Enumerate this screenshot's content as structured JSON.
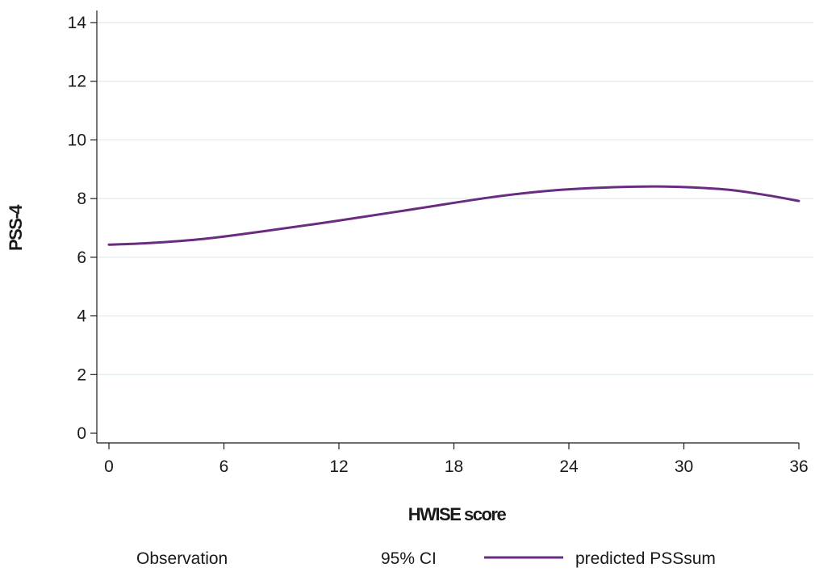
{
  "chart_data": {
    "type": "line",
    "xlabel": "HWISE score",
    "ylabel": "PSS-4",
    "xlim": [
      0,
      36
    ],
    "ylim": [
      0,
      14
    ],
    "xticks": [
      0,
      6,
      12,
      18,
      24,
      30,
      36
    ],
    "yticks": [
      0,
      2,
      4,
      6,
      8,
      10,
      12,
      14
    ],
    "grid": "horizontal",
    "legend_position": "bottom",
    "legend": [
      {
        "label": "Observation",
        "marker": "none"
      },
      {
        "label": "95% CI",
        "marker": "none"
      },
      {
        "label": "predicted PSSsum",
        "marker": "line"
      }
    ],
    "series": [
      {
        "name": "predicted PSSsum",
        "color": "#6a2c80",
        "x": [
          0,
          2,
          5,
          8,
          12,
          16,
          20,
          23,
          26,
          29,
          32,
          34,
          36
        ],
        "y": [
          6.43,
          6.48,
          6.63,
          6.88,
          7.25,
          7.65,
          8.05,
          8.27,
          8.38,
          8.41,
          8.32,
          8.15,
          7.92
        ]
      }
    ]
  },
  "colors": {
    "background": "#ffffff",
    "gridline": "#e6edef",
    "axis": "#1a1a1a",
    "series": "#6a2c80"
  }
}
